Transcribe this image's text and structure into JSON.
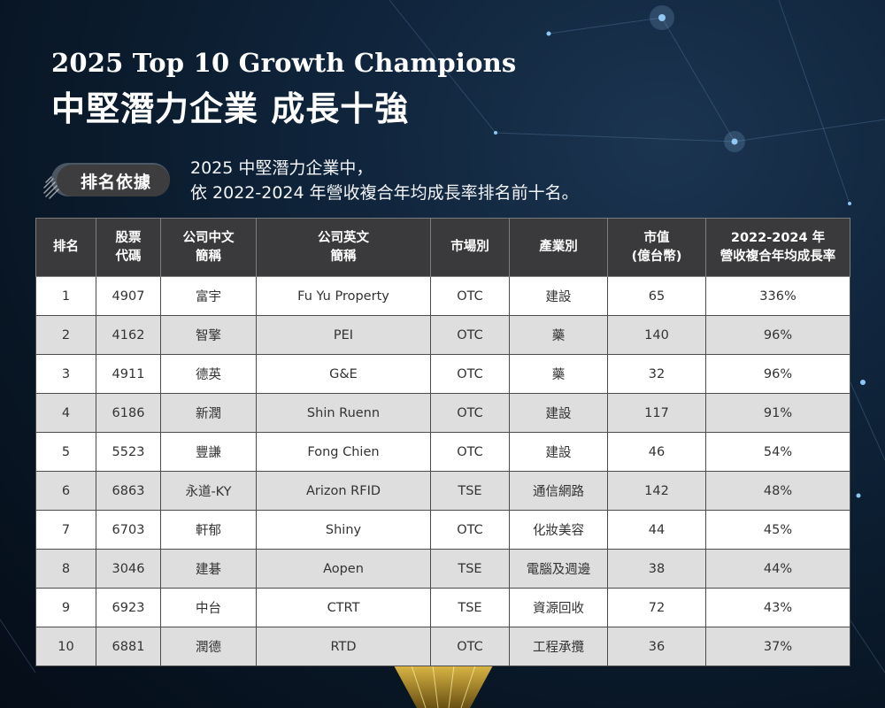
{
  "header": {
    "title_en": "2025 Top 10 Growth Champions",
    "title_zh": "中堅潛力企業 成長十強"
  },
  "criteria": {
    "badge": "排名依據",
    "line1": "2025 中堅潛力企業中，",
    "line2": "依 2022-2024 年營收複合年均成長率排名前十名。"
  },
  "table": {
    "columns": [
      {
        "line1": "排名",
        "line2": ""
      },
      {
        "line1": "股票",
        "line2": "代碼"
      },
      {
        "line1": "公司中文",
        "line2": "簡稱"
      },
      {
        "line1": "公司英文",
        "line2": "簡稱"
      },
      {
        "line1": "市場別",
        "line2": ""
      },
      {
        "line1": "產業別",
        "line2": ""
      },
      {
        "line1": "市值",
        "line2": "(億台幣)"
      },
      {
        "line1": "2022-2024 年",
        "line2": "營收複合年均成長率"
      }
    ],
    "rows": [
      [
        "1",
        "4907",
        "富宇",
        "Fu Yu Property",
        "OTC",
        "建設",
        "65",
        "336%"
      ],
      [
        "2",
        "4162",
        "智擎",
        "PEI",
        "OTC",
        "藥",
        "140",
        "96%"
      ],
      [
        "3",
        "4911",
        "德英",
        "G&E",
        "OTC",
        "藥",
        "32",
        "96%"
      ],
      [
        "4",
        "6186",
        "新潤",
        "Shin Ruenn",
        "OTC",
        "建設",
        "117",
        "91%"
      ],
      [
        "5",
        "5523",
        "豐謙",
        "Fong Chien",
        "OTC",
        "建設",
        "46",
        "54%"
      ],
      [
        "6",
        "6863",
        "永道-KY",
        "Arizon RFID",
        "TSE",
        "通信網路",
        "142",
        "48%"
      ],
      [
        "7",
        "6703",
        "軒郁",
        "Shiny",
        "OTC",
        "化妝美容",
        "44",
        "45%"
      ],
      [
        "8",
        "3046",
        "建碁",
        "Aopen",
        "TSE",
        "電腦及週邊",
        "38",
        "44%"
      ],
      [
        "9",
        "6923",
        "中台",
        "CTRT",
        "TSE",
        "資源回收",
        "72",
        "43%"
      ],
      [
        "10",
        "6881",
        "潤德",
        "RTD",
        "OTC",
        "工程承攬",
        "36",
        "37%"
      ]
    ]
  },
  "colors": {
    "background": "#0b1a2c",
    "header_fill": "#3a3a3c",
    "row_odd": "#ffffff",
    "row_even": "#dedede",
    "badge_fill": "#3d3d3f"
  }
}
